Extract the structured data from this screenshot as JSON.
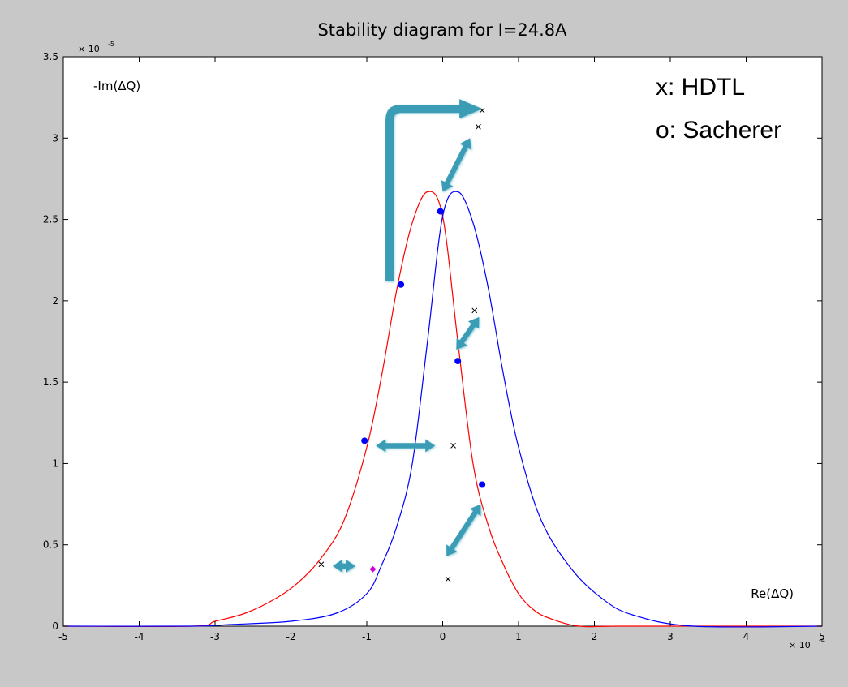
{
  "chart_data": {
    "type": "line",
    "title": "Stability diagram for I=24.8A",
    "xlabel": "Re(ΔQ)",
    "ylabel": "-Im(ΔQ)",
    "x_multiplier": "× 10",
    "x_multiplier_exp": "-4",
    "y_multiplier": "× 10",
    "y_multiplier_exp": "-5",
    "xlim": [
      -5,
      5
    ],
    "ylim": [
      0,
      3.5
    ],
    "xticks": [
      -5,
      -4,
      -3,
      -2,
      -1,
      0,
      1,
      2,
      3,
      4,
      5
    ],
    "yticks": [
      0,
      0.5,
      1,
      1.5,
      2,
      2.5,
      3,
      3.5
    ],
    "xtick_labels": [
      "-5",
      "-4",
      "-3",
      "-2",
      "-1",
      "0",
      "1",
      "2",
      "3",
      "4",
      "5"
    ],
    "ytick_labels": [
      "0",
      "0.5",
      "1",
      "1.5",
      "2",
      "2.5",
      "3",
      "3.5"
    ],
    "grid": false,
    "legend_lines": [
      "x: HDTL",
      "o: Sacherer"
    ],
    "legend_placement": "top-right",
    "series": [
      {
        "color": "#ff0000",
        "x": [
          -5,
          -3.3,
          -3.0,
          -2.6,
          -2.2,
          -1.9,
          -1.6,
          -1.3,
          -1.0,
          -0.8,
          -0.6,
          -0.4,
          -0.2,
          0.0,
          0.2,
          0.4,
          0.6,
          0.8,
          1.0,
          1.2,
          1.4,
          1.8,
          2.4,
          5
        ],
        "y": [
          0,
          0.0,
          0.03,
          0.08,
          0.17,
          0.27,
          0.42,
          0.65,
          1.1,
          1.55,
          2.08,
          2.48,
          2.67,
          2.52,
          1.75,
          1.0,
          0.62,
          0.38,
          0.2,
          0.1,
          0.05,
          0.0,
          0.0,
          0
        ]
      },
      {
        "color": "#0000ff",
        "x": [
          -5,
          -3.3,
          -2.8,
          -2.0,
          -1.4,
          -1.0,
          -0.8,
          -0.6,
          -0.4,
          -0.2,
          0.0,
          0.2,
          0.4,
          0.6,
          0.8,
          1.0,
          1.3,
          1.7,
          2.1,
          2.5,
          3.3,
          5
        ],
        "y": [
          0,
          0.0,
          0.01,
          0.03,
          0.08,
          0.2,
          0.38,
          0.62,
          1.0,
          1.75,
          2.52,
          2.67,
          2.48,
          2.08,
          1.55,
          1.1,
          0.65,
          0.35,
          0.17,
          0.07,
          0.0,
          0
        ]
      }
    ],
    "sacherer_points": [
      {
        "x": -0.55,
        "y": 2.1
      },
      {
        "x": -0.03,
        "y": 2.55
      },
      {
        "x": 0.2,
        "y": 1.63
      },
      {
        "x": -1.03,
        "y": 1.14
      },
      {
        "x": 0.52,
        "y": 0.87
      },
      {
        "x": -0.92,
        "y": 0.35
      }
    ],
    "hdtl_points": [
      {
        "x": 0.52,
        "y": 3.17
      },
      {
        "x": 0.47,
        "y": 3.07
      },
      {
        "x": 0.42,
        "y": 1.94
      },
      {
        "x": 0.14,
        "y": 1.11
      },
      {
        "x": -1.6,
        "y": 0.38
      },
      {
        "x": 0.07,
        "y": 0.29
      }
    ],
    "arrows": [
      {
        "kind": "elbow",
        "from": [
          -0.7,
          2.12
        ],
        "corner": [
          -0.7,
          3.18
        ],
        "to": [
          0.52,
          3.18
        ]
      },
      {
        "kind": "double",
        "from": [
          0.0,
          2.67
        ],
        "to": [
          0.36,
          3.0
        ]
      },
      {
        "kind": "double",
        "from": [
          0.18,
          1.7
        ],
        "to": [
          0.48,
          1.9
        ]
      },
      {
        "kind": "double",
        "from": [
          -0.88,
          1.11
        ],
        "to": [
          -0.1,
          1.11
        ]
      },
      {
        "kind": "double",
        "from": [
          0.05,
          0.43
        ],
        "to": [
          0.5,
          0.75
        ]
      },
      {
        "kind": "double",
        "from": [
          -1.45,
          0.37
        ],
        "to": [
          -1.15,
          0.37
        ]
      }
    ]
  }
}
